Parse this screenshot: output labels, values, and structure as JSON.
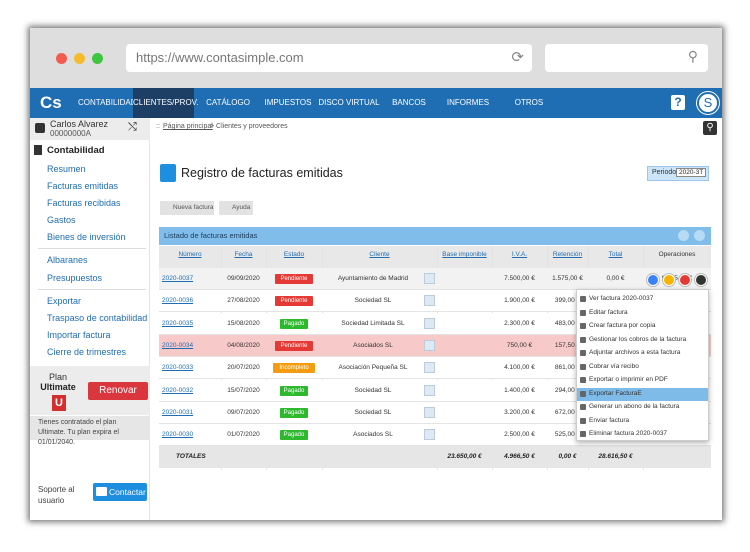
{
  "browser": {
    "url": "https://www.contasimple.com"
  },
  "nav": {
    "logo": "Cs",
    "items": [
      "CONTABILIDAD",
      "CLIENTES/PROV.",
      "CATÁLOGO",
      "IMPUESTOS",
      "DISCO VIRTUAL",
      "BANCOS",
      "INFORMES",
      "OTROS"
    ],
    "help": "?",
    "avatar": "S"
  },
  "user": {
    "name": "Carlos Alvarez",
    "id": "00000000A"
  },
  "breadcrumb": {
    "prefix": "::",
    "home": "Página principal",
    "rest": "> Clientes y proveedores"
  },
  "sidebar": {
    "section": "Contabilidad",
    "groups": [
      [
        "Resumen",
        "Facturas emitidas",
        "Facturas recibidas",
        "Gastos",
        "Bienes de inversión"
      ],
      [
        "Albaranes",
        "Presupuestos"
      ],
      [
        "Exportar",
        "Traspaso de contabilidad",
        "Importar factura",
        "Cierre de trimestres"
      ]
    ],
    "plan": {
      "label": "Plan",
      "name": "Ultimate",
      "badge": "U",
      "button": "Renovar",
      "note": "Tienes contratado el plan Ultimate. Tu plan expira el 01/01/2040."
    },
    "support": {
      "label": "Soporte al usuario",
      "button": "Contactar"
    }
  },
  "main": {
    "title": "Registro de facturas emitidas",
    "period_label": "Periodo",
    "period_value": "2020-3T",
    "buttons": [
      "Nueva factura",
      "Ayuda"
    ],
    "panel_title": "Listado de facturas emitidas",
    "table": {
      "columns": [
        "Número",
        "Fecha",
        "Estado",
        "Cliente",
        "Base imponible",
        "I.V.A.",
        "Retención",
        "Total",
        "Operaciones"
      ],
      "rows": [
        [
          "2020-0037",
          "09/09/2020",
          "Pendiente",
          "Ayuntamiento de Madrid",
          "7.500,00 €",
          "1.575,00 €",
          "0,00 €",
          "9.075,00 €"
        ],
        [
          "2020-0036",
          "27/08/2020",
          "Pendiente",
          "Sociedad SL",
          "1.900,00 €",
          "399,00 €",
          "0,00 €"
        ],
        [
          "2020-0035",
          "15/08/2020",
          "Pagado",
          "Sociedad Limitada SL",
          "2.300,00 €",
          "483,00 €",
          "0,00 €"
        ],
        [
          "2020-0034",
          "04/08/2020",
          "Pendiente",
          "Asociados SL",
          "750,00 €",
          "157,50 €",
          "0,00 €"
        ],
        [
          "2020-0033",
          "20/07/2020",
          "Incompleto",
          "Asociación Pequeña SL",
          "4.100,00 €",
          "861,00 €",
          "0,00 €"
        ],
        [
          "2020-0032",
          "15/07/2020",
          "Pagado",
          "Sociedad SL",
          "1.400,00 €",
          "294,00 €",
          "0,00 €"
        ],
        [
          "2020-0031",
          "09/07/2020",
          "Pagado",
          "Sociedad SL",
          "3.200,00 €",
          "672,00 €",
          "0,00 €"
        ],
        [
          "2020-0030",
          "01/07/2020",
          "Pagado",
          "Asociados SL",
          "2.500,00 €",
          "525,00 €",
          "0,00 €"
        ]
      ],
      "totals": {
        "label": "TOTALES",
        "values": [
          "23.650,00 €",
          "4.966,50 €",
          "0,00 €",
          "28.616,50 €"
        ]
      }
    },
    "menu": [
      "Ver factura 2020-0037",
      "Editar factura",
      "Crear factura por copia",
      "Gestionar los cobros de la factura",
      "Adjuntar archivos a esta factura",
      "Cobrar vía recibo",
      "Exportar o imprimir en PDF",
      "Exportar FacturaE",
      "Generar un abono de la factura",
      "Enviar factura",
      "Eliminar factura 2020-0037"
    ]
  }
}
